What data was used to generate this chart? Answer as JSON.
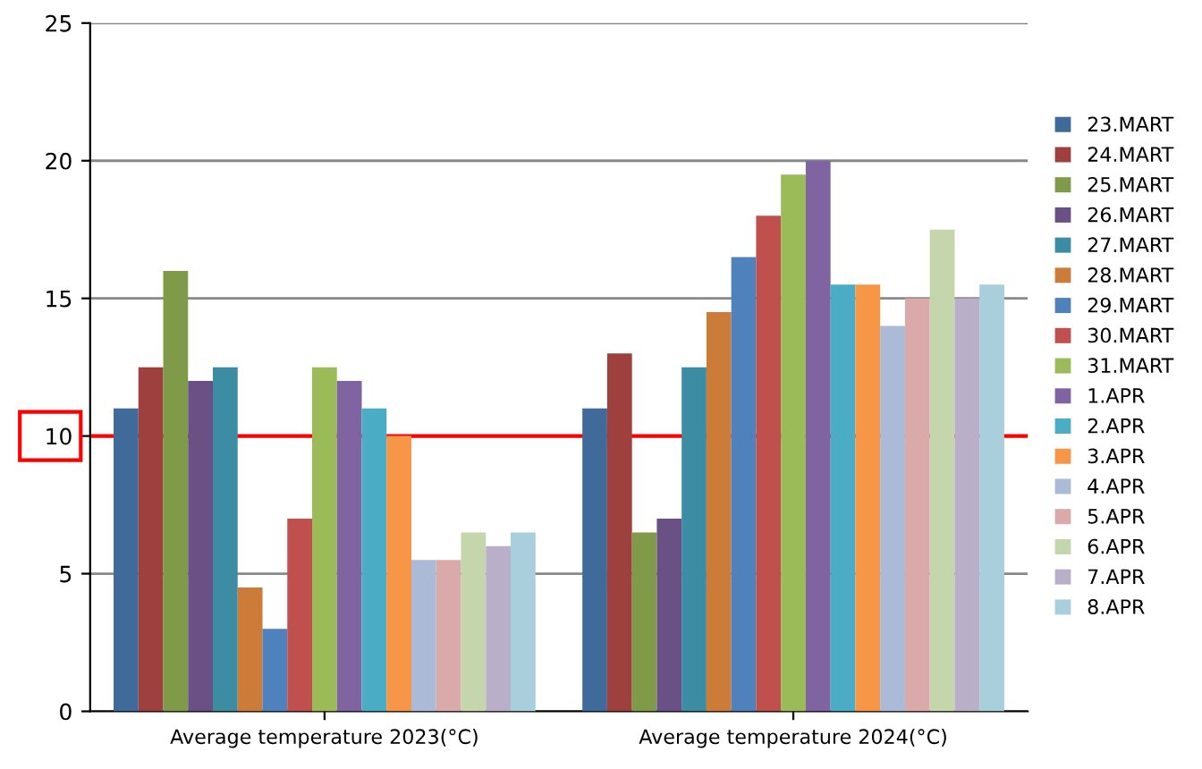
{
  "chart_data": {
    "type": "bar",
    "categories": [
      "Average temperature 2023(°C)",
      "Average temperature 2024(°C)"
    ],
    "series": [
      {
        "name": "23.MART",
        "color": "#3f6a9a",
        "values": [
          11,
          11
        ]
      },
      {
        "name": "24.MART",
        "color": "#9e413e",
        "values": [
          12.5,
          13
        ]
      },
      {
        "name": "25.MART",
        "color": "#7f9a48",
        "values": [
          16,
          6.5
        ]
      },
      {
        "name": "26.MART",
        "color": "#695185",
        "values": [
          12,
          7
        ]
      },
      {
        "name": "27.MART",
        "color": "#3c8da3",
        "values": [
          12.5,
          12.5
        ]
      },
      {
        "name": "28.MART",
        "color": "#cc7b38",
        "values": [
          4.5,
          14.5
        ]
      },
      {
        "name": "29.MART",
        "color": "#4f81bd",
        "values": [
          3,
          16.5
        ]
      },
      {
        "name": "30.MART",
        "color": "#c0504d",
        "values": [
          7,
          18
        ]
      },
      {
        "name": "31.MART",
        "color": "#9bbb59",
        "values": [
          12.5,
          19.5
        ]
      },
      {
        "name": "1.APR",
        "color": "#8064a2",
        "values": [
          12,
          20
        ]
      },
      {
        "name": "2.APR",
        "color": "#4bacc6",
        "values": [
          11,
          15.5
        ]
      },
      {
        "name": "3.APR",
        "color": "#f79646",
        "values": [
          10,
          15.5
        ]
      },
      {
        "name": "4.APR",
        "color": "#aabad7",
        "values": [
          5.5,
          14
        ]
      },
      {
        "name": "5.APR",
        "color": "#d9aaa9",
        "values": [
          5.5,
          15
        ]
      },
      {
        "name": "6.APR",
        "color": "#c6d6ac",
        "values": [
          6.5,
          17.5
        ]
      },
      {
        "name": "7.APR",
        "color": "#baafc9",
        "values": [
          6,
          15
        ]
      },
      {
        "name": "8.APR",
        "color": "#a9cedc",
        "values": [
          6.5,
          15.5
        ]
      }
    ],
    "ylim": [
      0,
      25
    ],
    "yticks": [
      0,
      5,
      10,
      15,
      20,
      25
    ],
    "grid": "y",
    "legend": "right",
    "ref_lines": [
      {
        "axis": "y",
        "value": 10,
        "color": "#ff0000"
      }
    ]
  }
}
